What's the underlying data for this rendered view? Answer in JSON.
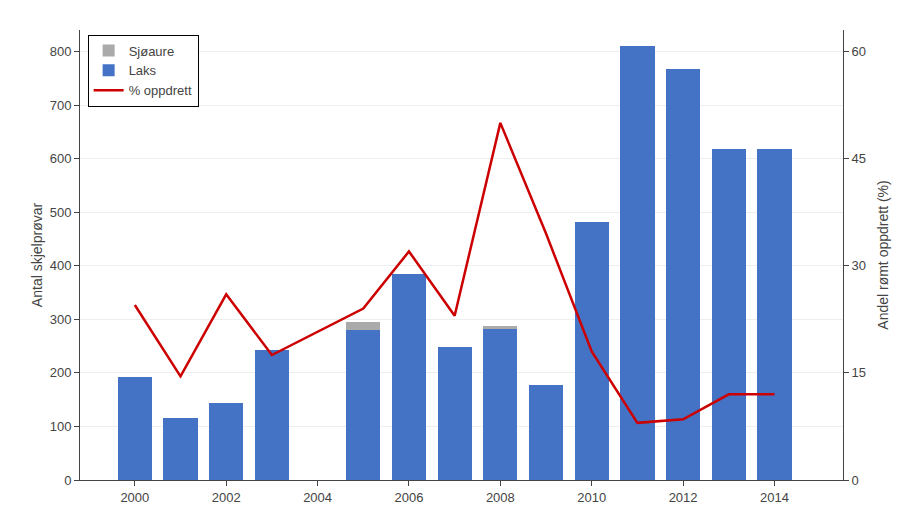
{
  "chart_data": {
    "type": "bar",
    "stacked": true,
    "x": [
      2000,
      2001,
      2002,
      2003,
      2005,
      2006,
      2007,
      2008,
      2009,
      2010,
      2011,
      2012,
      2013,
      2014
    ],
    "series": [
      {
        "name": "Laks",
        "color": "#4472c4",
        "values": [
          192,
          115,
          143,
          243,
          280,
          385,
          248,
          282,
          178,
          482,
          810,
          768,
          618,
          618
        ]
      },
      {
        "name": "Sjøaure",
        "color": "#aaaaaa",
        "values": [
          0,
          0,
          0,
          0,
          15,
          0,
          0,
          5,
          0,
          0,
          0,
          0,
          0,
          0
        ]
      },
      {
        "name": "% oppdrett",
        "type": "line",
        "axis": "y2",
        "color": "#cc0000",
        "values": [
          24.5,
          14.5,
          26.0,
          17.5,
          24.0,
          32.0,
          23.0,
          50.0,
          34.5,
          18.0,
          8.0,
          8.5,
          12.0,
          12.0
        ]
      }
    ],
    "ylabel": "Antal skjelprøvar",
    "y2label": "Andel rømt oppdrett (%)",
    "xlim": [
      1998.8,
      2015.5
    ],
    "xticks": [
      2000,
      2002,
      2004,
      2006,
      2008,
      2010,
      2012,
      2014
    ],
    "ylim": [
      0,
      840
    ],
    "yticks": [
      0,
      100,
      200,
      300,
      400,
      500,
      600,
      700,
      800
    ],
    "y2lim": [
      0,
      63
    ],
    "y2ticks": [
      0,
      15,
      30,
      45,
      60
    ],
    "grid": true,
    "legend": "upper left"
  }
}
